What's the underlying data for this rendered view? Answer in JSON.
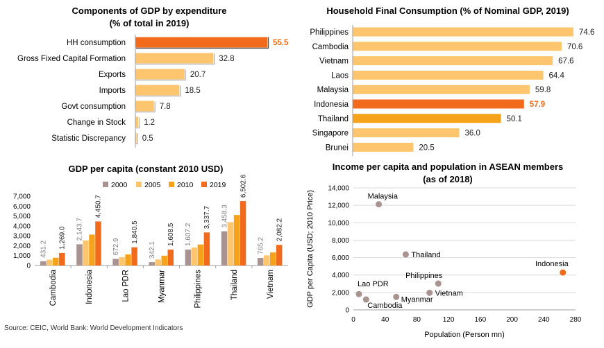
{
  "colors": {
    "highlight": "#F26B1D",
    "light": "#FDC66E",
    "medium": "#F7A21B",
    "gray": "#A89391",
    "grid": "#D9D9D9",
    "axis": "#9E9E9E",
    "highlight_label": "#F26B1D"
  },
  "source": "Source: CEIC, World Bank: World Development Indicators",
  "chart_data": [
    {
      "type": "bar",
      "orientation": "horizontal",
      "title": "Components of GDP by expenditure",
      "subtitle": "(% of total in 2019)",
      "categories": [
        "HH consumption",
        "Gross Fixed Capital Formation",
        "Exports",
        "Imports",
        "Govt consumption",
        "Change in Stock",
        "Statistic Discrepancy"
      ],
      "values": [
        55.5,
        32.8,
        20.7,
        18.5,
        7.8,
        1.2,
        0.5
      ],
      "value_labels": [
        "55.5",
        "32.8",
        "20.7",
        "18.5",
        "7.8",
        "1.2",
        "0.5"
      ],
      "highlight": "HH consumption",
      "xlim": [
        0,
        60
      ]
    },
    {
      "type": "bar",
      "orientation": "horizontal",
      "title": "Household Final Consumption (% of Nominal GDP, 2019)",
      "categories": [
        "Philippines",
        "Cambodia",
        "Vietnam",
        "Laos",
        "Malaysia",
        "Indonesia",
        "Thailand",
        "Singapore",
        "Brunei"
      ],
      "values": [
        74.6,
        70.6,
        67.6,
        64.4,
        59.8,
        57.9,
        50.1,
        36.0,
        20.5
      ],
      "value_labels": [
        "74.6",
        "70.6",
        "67.6",
        "64.4",
        "59.8",
        "57.9",
        "50.1",
        "36.0",
        "20.5"
      ],
      "highlight": "Indonesia",
      "secondary_highlight": "Thailand",
      "xlim": [
        0,
        80
      ]
    },
    {
      "type": "bar",
      "orientation": "vertical",
      "title": "GDP per capita (constant 2010 USD)",
      "categories": [
        "Cambodia",
        "Indonesia",
        "Lao PDR",
        "Myanmar",
        "Philippines",
        "Thailand",
        "Vietnam"
      ],
      "series": [
        {
          "name": "2000",
          "values": [
            431.2,
            2143.7,
            672.9,
            342.1,
            1607.2,
            3458.3,
            765.2
          ]
        },
        {
          "name": "2005",
          "values": [
            590,
            2530,
            830,
            610,
            1810,
            4380,
            1020
          ]
        },
        {
          "name": "2010",
          "values": [
            790,
            3120,
            1120,
            990,
            2120,
            5100,
            1320
          ]
        },
        {
          "name": "2019",
          "values": [
            1269.0,
            4450.7,
            1840.5,
            1608.5,
            3337.7,
            6502.6,
            2082.2
          ]
        }
      ],
      "first_labels": [
        "431.2",
        "2,143.7",
        "672.9",
        "342.1",
        "1,607.2",
        "3,458.3",
        "765.2"
      ],
      "last_labels": [
        "1,269.0",
        "4,450.7",
        "1,840.5",
        "1,608.5",
        "3,337.7",
        "6,502.6",
        "2,082.2"
      ],
      "yticks": [
        "0",
        "1,000",
        "2,000",
        "3,000",
        "4,000",
        "5,000",
        "6,000",
        "7,000"
      ],
      "ylim": [
        0,
        7000
      ],
      "legend": "top"
    },
    {
      "type": "scatter",
      "title": "Income per capita and population in ASEAN members",
      "subtitle": "(as of 2018)",
      "xlabel": "Population (Person mn)",
      "ylabel": "GDP per Capita (USD; 2010 Price)",
      "xticks": [
        "0",
        "40",
        "80",
        "120",
        "160",
        "200",
        "240",
        "280"
      ],
      "yticks": [
        "0",
        "2,000",
        "4,000",
        "6,000",
        "8,000",
        "10,000",
        "12,000",
        "14,000"
      ],
      "xlim": [
        0,
        280
      ],
      "ylim": [
        0,
        14000
      ],
      "points": [
        {
          "label": "Malaysia",
          "x": 32,
          "y": 12120
        },
        {
          "label": "Thailand",
          "x": 66,
          "y": 6360
        },
        {
          "label": "Indonesia",
          "x": 264,
          "y": 4290,
          "highlight": true
        },
        {
          "label": "Philippines",
          "x": 107,
          "y": 3020
        },
        {
          "label": "Vietnam",
          "x": 96,
          "y": 1960
        },
        {
          "label": "Lao PDR",
          "x": 7,
          "y": 1810
        },
        {
          "label": "Myanmar",
          "x": 54,
          "y": 1490
        },
        {
          "label": "Cambodia",
          "x": 16,
          "y": 1190
        }
      ]
    }
  ]
}
